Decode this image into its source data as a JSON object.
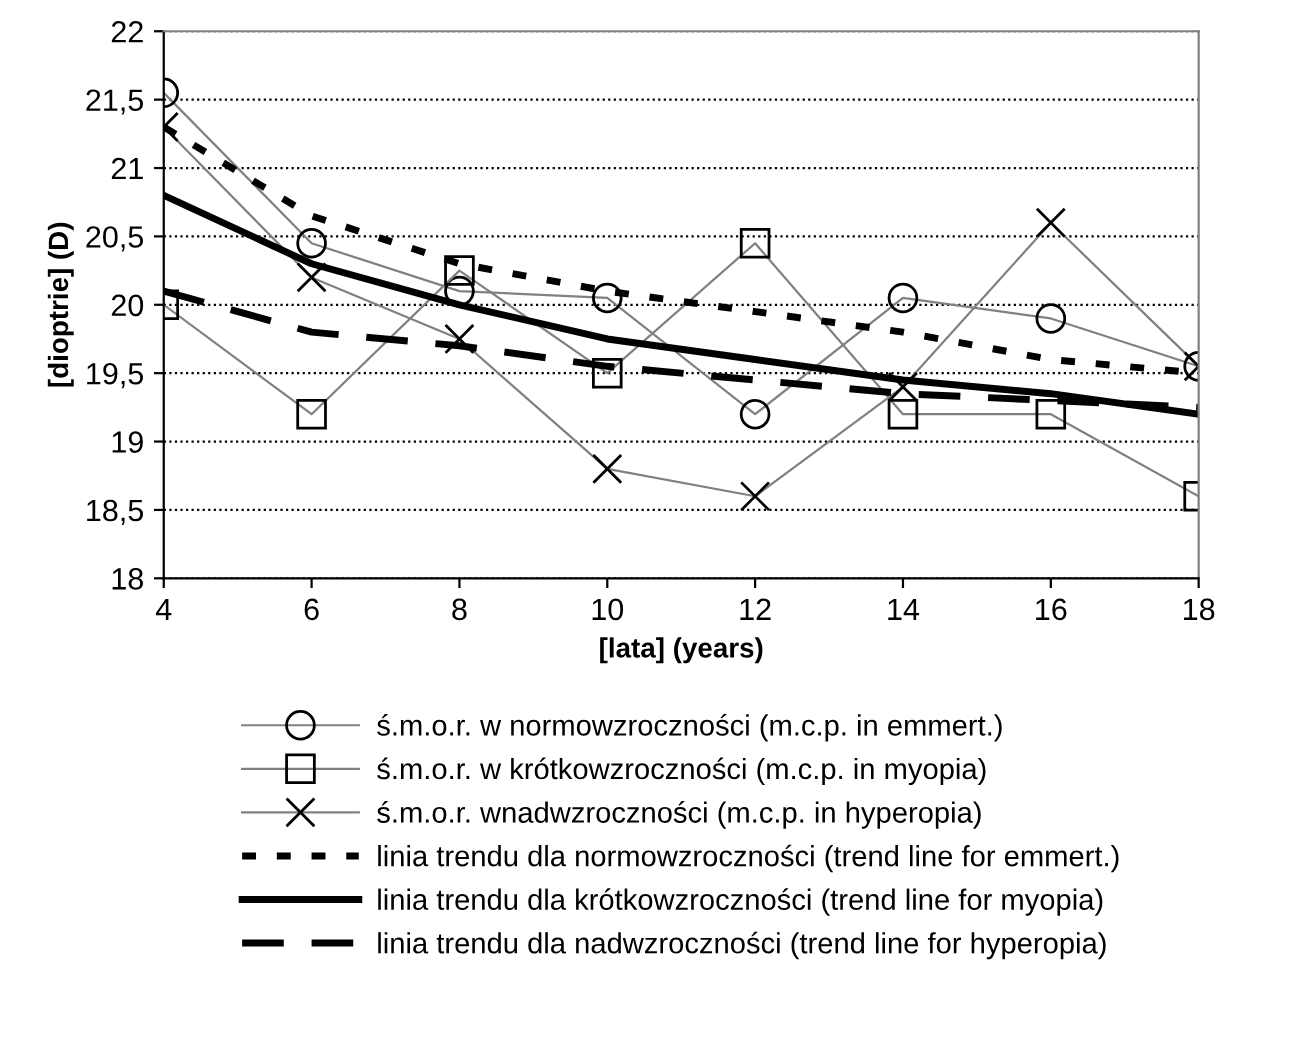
{
  "chart_data": {
    "type": "line",
    "xlabel": "[lata] (years)",
    "ylabel": "[dioptrie] (D)",
    "x": [
      4,
      6,
      8,
      10,
      12,
      14,
      16,
      18
    ],
    "xlim": [
      4,
      18
    ],
    "xticks": [
      4,
      6,
      8,
      10,
      12,
      14,
      16,
      18
    ],
    "ylim": [
      18,
      22
    ],
    "yticks": [
      18,
      {
        "value": 18.5,
        "label": "18,5"
      },
      19,
      {
        "value": 19.5,
        "label": "19,5"
      },
      20,
      {
        "value": 20.5,
        "label": "20,5"
      },
      21,
      {
        "value": 21.5,
        "label": "21,5"
      },
      22
    ],
    "grid": "y",
    "legend": "bottom",
    "series": [
      {
        "name": "ś.m.o.r. w normowzroczności (m.c.p. in emmert.)",
        "color": "#808080",
        "marker": "circle",
        "line_style": "solid",
        "values": [
          21.55,
          20.45,
          20.1,
          20.05,
          19.2,
          20.05,
          19.9,
          19.55
        ]
      },
      {
        "name": "ś.m.o.r. w krótkowzroczności (m.c.p. in myopia)",
        "color": "#808080",
        "marker": "square",
        "line_style": "solid",
        "values": [
          20.0,
          19.2,
          20.25,
          19.5,
          20.45,
          19.2,
          19.2,
          18.6
        ]
      },
      {
        "name": "ś.m.o.r. wnadwzroczności (m.c.p. in hyperopia)",
        "color": "#808080",
        "marker": "cross",
        "line_style": "solid",
        "values": [
          21.3,
          20.2,
          19.75,
          18.8,
          18.6,
          19.4,
          20.6,
          19.55
        ]
      },
      {
        "name": "linia trendu dla normowzroczności (trend line for emmert.)",
        "color": "#000000",
        "marker": "none",
        "line_style": "dotted",
        "values": [
          21.3,
          20.65,
          20.3,
          20.1,
          19.95,
          19.8,
          19.6,
          19.5
        ]
      },
      {
        "name": "linia trendu dla krótkowzroczności (trend line for myopia)",
        "color": "#000000",
        "marker": "none",
        "line_style": "solid",
        "values": [
          20.8,
          20.3,
          20.0,
          19.75,
          19.6,
          19.45,
          19.35,
          19.2
        ]
      },
      {
        "name": "linia trendu dla nadwzroczności (trend line for hyperopia)",
        "color": "#000000",
        "marker": "none",
        "line_style": "dashed",
        "values": [
          20.1,
          19.8,
          19.7,
          19.55,
          19.45,
          19.35,
          19.3,
          19.25
        ]
      }
    ]
  }
}
